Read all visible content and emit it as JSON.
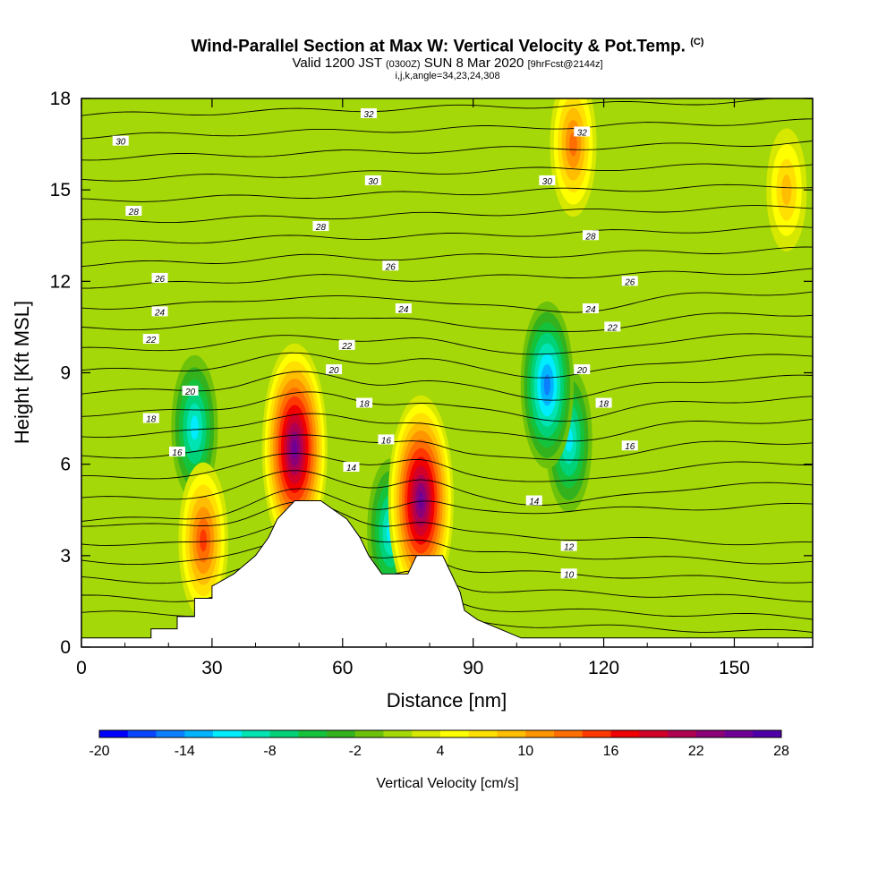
{
  "header": {
    "title": "Wind-Parallel Section at Max W: Vertical Velocity & Pot.Temp.",
    "copyright": "(C)",
    "valid_prefix": "Valid 1200 JST",
    "valid_utc": "(0300Z)",
    "valid_date": "SUN 8 Mar 2020",
    "forecast": "[9hrFcst@2144z]",
    "indices": "i,j,k,angle=34,23,24,308"
  },
  "chart_data": {
    "type": "heatmap",
    "xlabel": "Distance [nm]",
    "ylabel": "Height [Kft MSL]",
    "xlim": [
      0,
      168
    ],
    "ylim": [
      0,
      18
    ],
    "x_ticks": [
      0,
      30,
      60,
      90,
      120,
      150
    ],
    "y_ticks": [
      0,
      3,
      6,
      9,
      12,
      15,
      18
    ],
    "colorbar": {
      "label": "Vertical Velocity [cm/s]",
      "min": -20,
      "max": 28,
      "step": 2,
      "tick_values": [
        -20,
        -14,
        -8,
        -2,
        4,
        10,
        16,
        22,
        28
      ],
      "tick_labels": [
        "-20",
        "-14",
        "-8",
        "-2",
        "4",
        "10",
        "16",
        "22",
        "28"
      ],
      "colors": [
        "#0000ff",
        "#0a46ff",
        "#0a80ff",
        "#00b4ff",
        "#00ecff",
        "#00e4b4",
        "#00d27a",
        "#15c23c",
        "#33b21e",
        "#6cc20a",
        "#a4d808",
        "#d6e800",
        "#ffff00",
        "#ffe000",
        "#ffbe00",
        "#ff9600",
        "#ff6e00",
        "#ff3800",
        "#f00000",
        "#d20028",
        "#b00050",
        "#8c0078",
        "#6e0096",
        "#4e00a8"
      ]
    },
    "background_field": 0,
    "updraft_cores": [
      {
        "x": 107,
        "y": 8.6,
        "w": -16
      },
      {
        "x": 112,
        "y": 6.8,
        "w": -12
      },
      {
        "x": 26,
        "y": 7.2,
        "w": -12
      },
      {
        "x": 71,
        "y": 3.8,
        "w": -12
      },
      {
        "x": 49,
        "y": 6.5,
        "w": 24
      },
      {
        "x": 78,
        "y": 4.8,
        "w": 24
      },
      {
        "x": 28,
        "y": 3.5,
        "w": 14
      },
      {
        "x": 113,
        "y": 16.5,
        "w": 12
      },
      {
        "x": 162,
        "y": 15,
        "w": 8
      }
    ],
    "terrain_height_kft": [
      [
        0,
        0.3
      ],
      [
        16,
        0.3
      ],
      [
        16,
        0.6
      ],
      [
        22,
        0.6
      ],
      [
        22,
        1
      ],
      [
        26,
        1
      ],
      [
        26,
        1.6
      ],
      [
        30,
        1.6
      ],
      [
        30,
        2
      ],
      [
        35,
        2.4
      ],
      [
        40,
        3
      ],
      [
        43,
        3.6
      ],
      [
        45,
        4.2
      ],
      [
        49,
        4.8
      ],
      [
        55,
        4.8
      ],
      [
        58,
        4.5
      ],
      [
        61,
        4.2
      ],
      [
        64,
        3.6
      ],
      [
        66,
        3
      ],
      [
        69,
        2.4
      ],
      [
        75,
        2.4
      ],
      [
        77,
        3
      ],
      [
        83,
        3
      ],
      [
        85,
        2.4
      ],
      [
        87,
        1.8
      ],
      [
        88,
        1.2
      ],
      [
        91,
        0.9
      ],
      [
        96,
        0.6
      ],
      [
        101,
        0.3
      ],
      [
        168,
        0.3
      ]
    ],
    "contour_series": [
      {
        "label": "10",
        "label_at": [
          112,
          2.4
        ]
      },
      {
        "label": "12",
        "label_at": [
          112,
          3.3
        ]
      },
      {
        "label": "14",
        "label_at": [
          104,
          4.8
        ],
        "extra_label_at": [
          62,
          5.9
        ]
      },
      {
        "label": "16",
        "label_at": [
          126,
          6.6
        ],
        "extra_label_at": [
          70,
          6.8
        ],
        "alt_label_at": [
          22,
          6.4
        ]
      },
      {
        "label": "18",
        "label_at": [
          120,
          8.0
        ],
        "extra_label_at": [
          65,
          8.0
        ],
        "alt_label_at": [
          16,
          7.5
        ]
      },
      {
        "label": "20",
        "label_at": [
          115,
          9.1
        ],
        "extra_label_at": [
          58,
          9.1
        ],
        "alt_label_at": [
          25,
          8.4
        ]
      },
      {
        "label": "22",
        "label_at": [
          122,
          10.5
        ],
        "extra_label_at": [
          61,
          9.9
        ],
        "alt_label_at": [
          16,
          10.1
        ]
      },
      {
        "label": "24",
        "label_at": [
          117,
          11.1
        ],
        "extra_label_at": [
          74,
          11.1
        ],
        "alt_label_at": [
          18,
          11.0
        ]
      },
      {
        "label": "26",
        "label_at": [
          126,
          12.0
        ],
        "extra_label_at": [
          71,
          12.5
        ],
        "alt_label_at": [
          18,
          12.1
        ]
      },
      {
        "label": "28",
        "label_at": [
          117,
          13.5
        ],
        "extra_label_at": [
          55,
          13.8
        ],
        "alt_label_at": [
          12,
          14.3
        ]
      },
      {
        "label": "30",
        "label_at": [
          107,
          15.3
        ],
        "extra_label_at": [
          67,
          15.3
        ],
        "alt_label_at": [
          9,
          16.6
        ]
      },
      {
        "label": "32",
        "label_at": [
          115,
          16.9
        ],
        "extra_label_at": [
          66,
          17.5
        ]
      }
    ]
  }
}
